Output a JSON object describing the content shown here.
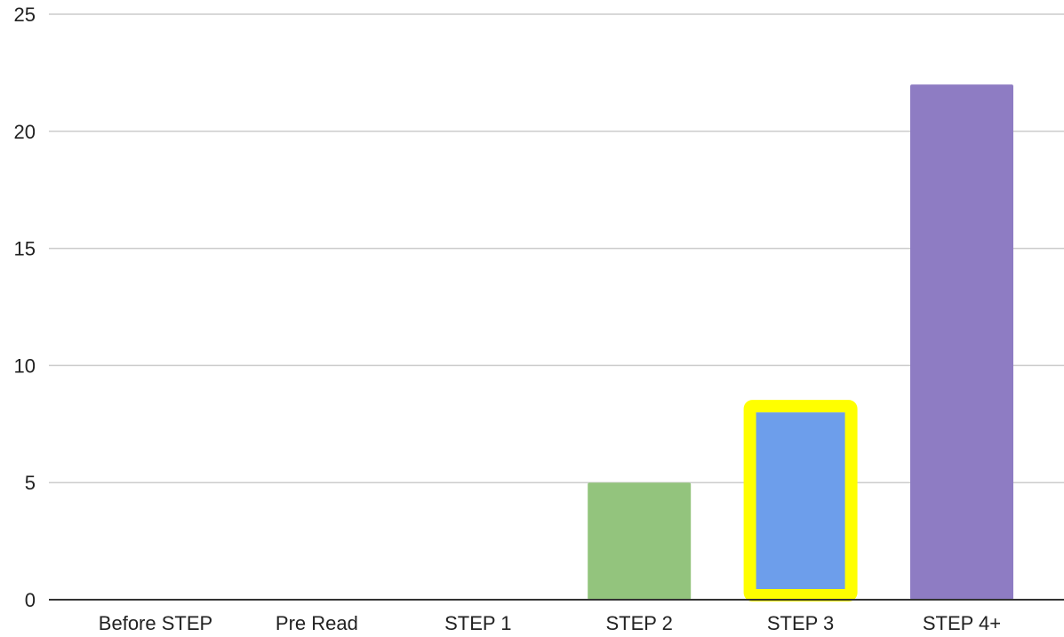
{
  "chart_data": {
    "type": "bar",
    "title": "",
    "xlabel": "",
    "ylabel": "",
    "categories": [
      "Before STEP",
      "Pre Read",
      "STEP 1",
      "STEP 2",
      "STEP 3",
      "STEP 4+"
    ],
    "values": [
      0,
      0,
      0,
      5,
      8,
      22
    ],
    "colors": [
      "#4285f4",
      "#ea4335",
      "#fbbc04",
      "#93c47d",
      "#6d9eeb",
      "#8e7cc3"
    ],
    "highlight": {
      "category": "STEP 3",
      "outline_color": "#ffff00"
    },
    "ylim": [
      0,
      25
    ],
    "yticks": [
      0,
      5,
      10,
      15,
      20,
      25
    ],
    "grid": true,
    "gridline_color": "#cccccc",
    "axis_color": "#333333",
    "legend": "none"
  }
}
